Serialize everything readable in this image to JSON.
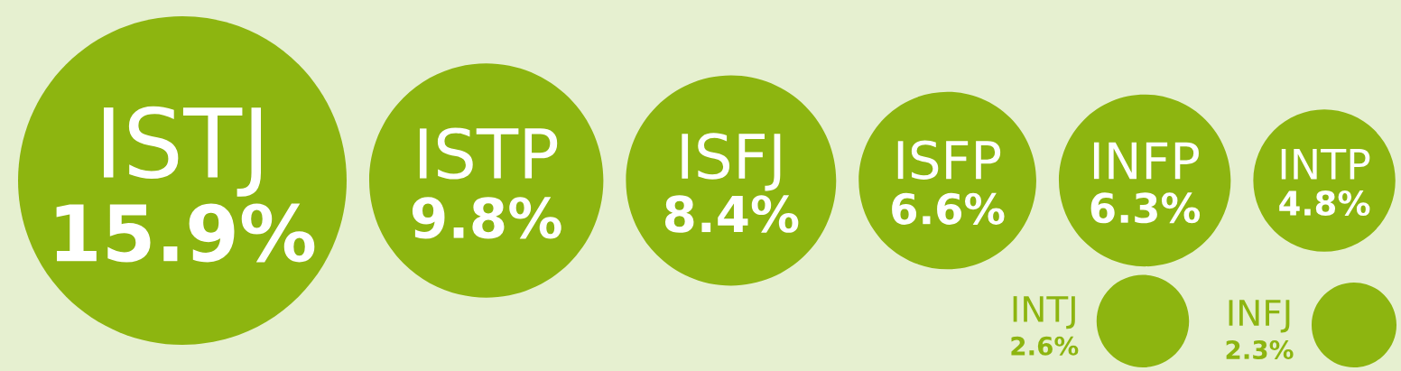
{
  "chart_data": {
    "type": "other",
    "categories": [
      "ISTJ",
      "ISTP",
      "ISFJ",
      "ISFP",
      "INFP",
      "INTP",
      "INTJ",
      "INFJ"
    ],
    "values": [
      15.9,
      9.8,
      8.4,
      6.6,
      6.3,
      4.8,
      2.6,
      2.3
    ],
    "value_labels": [
      "15.9%",
      "9.8%",
      "8.4%",
      "6.6%",
      "6.3%",
      "4.8%",
      "2.6%",
      "2.3%"
    ],
    "color": "#8db510"
  }
}
